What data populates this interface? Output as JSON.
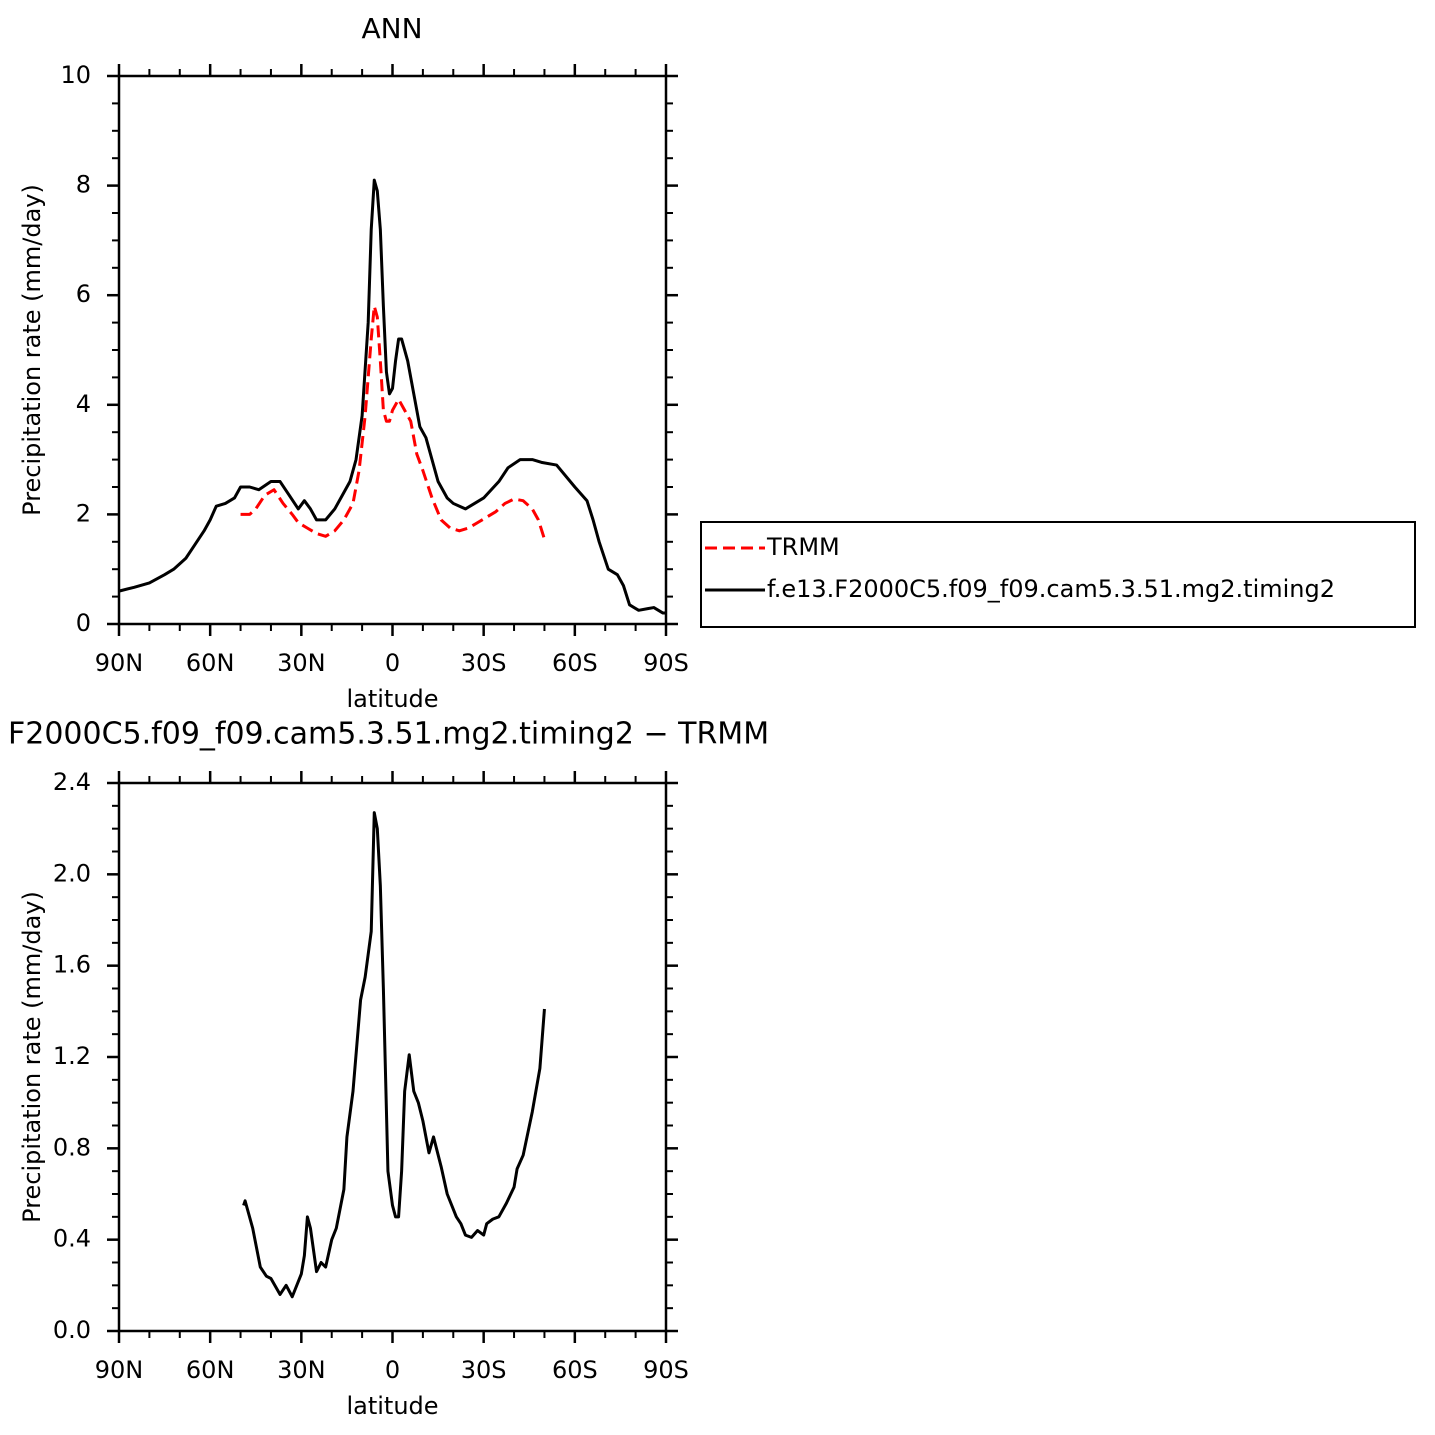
{
  "chart_data": [
    {
      "type": "line",
      "title": "ANN",
      "xlabel": "latitude",
      "ylabel": "Precipitation rate (mm/day)",
      "xlim": [
        90,
        -90
      ],
      "xticks": [
        {
          "value": 90,
          "label": "90N"
        },
        {
          "value": 60,
          "label": "60N"
        },
        {
          "value": 30,
          "label": "30N"
        },
        0,
        {
          "value": -30,
          "label": "30S"
        },
        {
          "value": -60,
          "label": "60S"
        },
        {
          "value": -90,
          "label": "90S"
        }
      ],
      "ylim": [
        0,
        10
      ],
      "yticks": [
        0,
        2,
        4,
        6,
        8,
        10
      ],
      "legend": "outside-right",
      "series": [
        {
          "name": "TRMM",
          "color": "#ff0000",
          "linestyle": "dashed",
          "x": [
            50,
            47,
            45,
            42,
            39,
            36,
            33,
            31,
            28,
            25,
            22,
            19,
            16,
            13,
            11,
            9,
            7,
            6,
            5,
            4,
            3,
            2,
            1,
            0,
            -1,
            -2,
            -4,
            -6,
            -8,
            -10,
            -13,
            -16,
            -19,
            -22,
            -25,
            -28,
            -31,
            -34,
            -37,
            -40,
            -43,
            -46,
            -48,
            -50
          ],
          "values": [
            2.0,
            2.0,
            2.1,
            2.35,
            2.45,
            2.2,
            2.0,
            1.85,
            1.75,
            1.65,
            1.6,
            1.7,
            1.9,
            2.2,
            2.8,
            3.8,
            5.2,
            5.8,
            5.6,
            4.8,
            3.9,
            3.7,
            3.7,
            3.9,
            4.0,
            4.1,
            3.9,
            3.7,
            3.1,
            2.8,
            2.3,
            1.9,
            1.75,
            1.7,
            1.75,
            1.85,
            1.95,
            2.05,
            2.2,
            2.28,
            2.25,
            2.1,
            1.9,
            1.55
          ]
        },
        {
          "name": "f.e13.F2000C5.f09_f09.cam5.3.51.mg2.timing2",
          "color": "#000000",
          "linestyle": "solid",
          "x": [
            90,
            85,
            80,
            75,
            72,
            68,
            65,
            62,
            60,
            58,
            55,
            52,
            50,
            47,
            44,
            40,
            37,
            34,
            31,
            29,
            27,
            25,
            22,
            19,
            16,
            14,
            12,
            10,
            8,
            7,
            6,
            5,
            4,
            3,
            2,
            1,
            0,
            -1,
            -2,
            -3,
            -5,
            -7,
            -9,
            -11,
            -13,
            -15,
            -18,
            -20,
            -24,
            -27,
            -30,
            -35,
            -38,
            -42,
            -46,
            -49,
            -54,
            -60,
            -64,
            -66,
            -68,
            -71,
            -74,
            -76,
            -78,
            -81,
            -84,
            -86,
            -89,
            -90
          ],
          "values": [
            0.6,
            0.67,
            0.75,
            0.9,
            1.0,
            1.2,
            1.45,
            1.7,
            1.9,
            2.15,
            2.2,
            2.3,
            2.5,
            2.5,
            2.45,
            2.6,
            2.6,
            2.35,
            2.1,
            2.25,
            2.1,
            1.9,
            1.9,
            2.1,
            2.4,
            2.6,
            3.0,
            3.8,
            5.5,
            7.2,
            8.1,
            7.9,
            7.2,
            5.8,
            4.6,
            4.2,
            4.3,
            4.8,
            5.2,
            5.2,
            4.8,
            4.2,
            3.6,
            3.4,
            3.0,
            2.6,
            2.3,
            2.2,
            2.1,
            2.2,
            2.3,
            2.6,
            2.85,
            3.0,
            3.0,
            2.95,
            2.9,
            2.5,
            2.25,
            1.9,
            1.5,
            1.0,
            0.9,
            0.7,
            0.35,
            0.25,
            0.28,
            0.3,
            0.2,
            0.2
          ]
        }
      ]
    },
    {
      "type": "line",
      "title": "F2000C5.f09_f09.cam5.3.51.mg2.timing2 − TRMM",
      "xlabel": "latitude",
      "ylabel": "Precipitation rate (mm/day)",
      "xlim": [
        90,
        -90
      ],
      "xticks": [
        {
          "value": 90,
          "label": "90N"
        },
        {
          "value": 60,
          "label": "60N"
        },
        {
          "value": 30,
          "label": "30N"
        },
        0,
        {
          "value": -30,
          "label": "30S"
        },
        {
          "value": -60,
          "label": "60S"
        },
        {
          "value": -90,
          "label": "90S"
        }
      ],
      "ylim": [
        0,
        2.4
      ],
      "yticks": [
        {
          "value": 0,
          "label": "0.0"
        },
        0.4,
        0.8,
        1.2,
        1.6,
        {
          "value": 2,
          "label": "2.0"
        },
        2.4
      ],
      "color": "#000000",
      "x": [
        49,
        48.5,
        46,
        43.5,
        41.5,
        40,
        37,
        35,
        33,
        30,
        29,
        28,
        27,
        25,
        23.5,
        22,
        20,
        18.5,
        16,
        15,
        13,
        10.5,
        9,
        7,
        6,
        5,
        4,
        3,
        1.5,
        0,
        -1,
        -2,
        -3,
        -4,
        -5.5,
        -7,
        -8.5,
        -10,
        -12,
        -13.5,
        -16,
        -18,
        -21,
        -22.5,
        -24,
        -26,
        -28,
        -30,
        -31,
        -33,
        -35,
        -37.5,
        -40,
        -41,
        -43,
        -46,
        -48.5,
        -50
      ],
      "values": [
        0.55,
        0.57,
        0.45,
        0.28,
        0.24,
        0.23,
        0.16,
        0.2,
        0.15,
        0.25,
        0.33,
        0.5,
        0.45,
        0.26,
        0.3,
        0.28,
        0.4,
        0.45,
        0.62,
        0.85,
        1.05,
        1.45,
        1.55,
        1.75,
        2.27,
        2.2,
        1.95,
        1.5,
        0.7,
        0.55,
        0.5,
        0.5,
        0.7,
        1.05,
        1.21,
        1.05,
        1.0,
        0.92,
        0.78,
        0.85,
        0.72,
        0.6,
        0.5,
        0.47,
        0.42,
        0.41,
        0.44,
        0.42,
        0.47,
        0.49,
        0.5,
        0.56,
        0.63,
        0.71,
        0.77,
        0.96,
        1.15,
        1.41
      ]
    }
  ]
}
